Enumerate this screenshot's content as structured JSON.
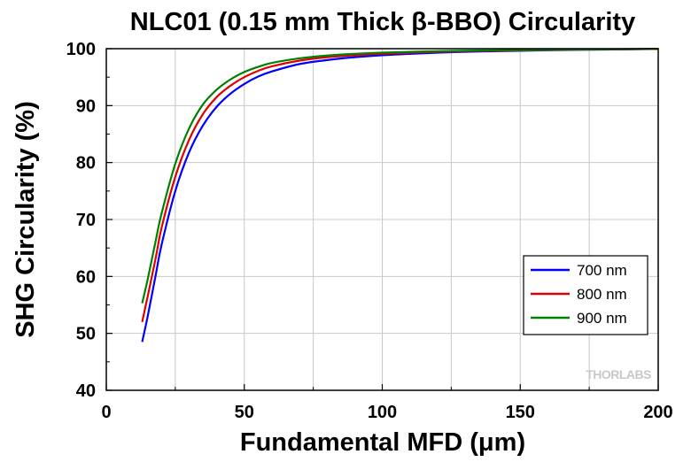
{
  "chart_data": {
    "type": "line",
    "title": "NLC01 (0.15 mm Thick β-BBO) Circularity",
    "xlabel": "Fundamental MFD (μm)",
    "ylabel": "SHG Circularity (%)",
    "xlim": [
      0,
      200
    ],
    "ylim": [
      40,
      100
    ],
    "xticks": [
      0,
      50,
      100,
      150,
      200
    ],
    "yticks": [
      40,
      50,
      60,
      70,
      80,
      90,
      100
    ],
    "xtick_labels": [
      "0",
      "50",
      "100",
      "150",
      "200"
    ],
    "ytick_labels": [
      "40",
      "50",
      "60",
      "70",
      "80",
      "90",
      "100"
    ],
    "grid": true,
    "legend_position": "bottom-right",
    "series": [
      {
        "name": "700 nm",
        "color": "#0000ff",
        "x": [
          13,
          15,
          18,
          20,
          25,
          30,
          35,
          40,
          45,
          50,
          55,
          60,
          70,
          80,
          90,
          100,
          120,
          140,
          160,
          180,
          200
        ],
        "y": [
          48.5,
          53,
          60.5,
          65.5,
          75,
          81.8,
          86.5,
          89.8,
          92.1,
          93.8,
          95.1,
          96.0,
          97.3,
          98.0,
          98.5,
          98.85,
          99.3,
          99.55,
          99.72,
          99.85,
          99.95
        ]
      },
      {
        "name": "800 nm",
        "color": "#e00000",
        "x": [
          13,
          15,
          18,
          20,
          25,
          30,
          35,
          40,
          45,
          50,
          55,
          60,
          70,
          80,
          90,
          100,
          120,
          140,
          160,
          180,
          200
        ],
        "y": [
          52,
          56.5,
          63.5,
          68.5,
          77.5,
          84,
          88.5,
          91.5,
          93.5,
          95.0,
          96.1,
          96.9,
          97.9,
          98.5,
          98.85,
          99.1,
          99.45,
          99.65,
          99.78,
          99.88,
          99.95
        ]
      },
      {
        "name": "900 nm",
        "color": "#008000",
        "x": [
          13,
          15,
          18,
          20,
          25,
          30,
          35,
          40,
          45,
          50,
          55,
          60,
          70,
          80,
          90,
          100,
          120,
          140,
          160,
          180,
          200
        ],
        "y": [
          55.3,
          59.5,
          66.5,
          71,
          79.8,
          86,
          90.2,
          92.8,
          94.6,
          95.9,
          96.8,
          97.5,
          98.3,
          98.8,
          99.1,
          99.3,
          99.55,
          99.72,
          99.83,
          99.9,
          99.97
        ]
      }
    ]
  },
  "logo": {
    "text": "THORLABS"
  }
}
